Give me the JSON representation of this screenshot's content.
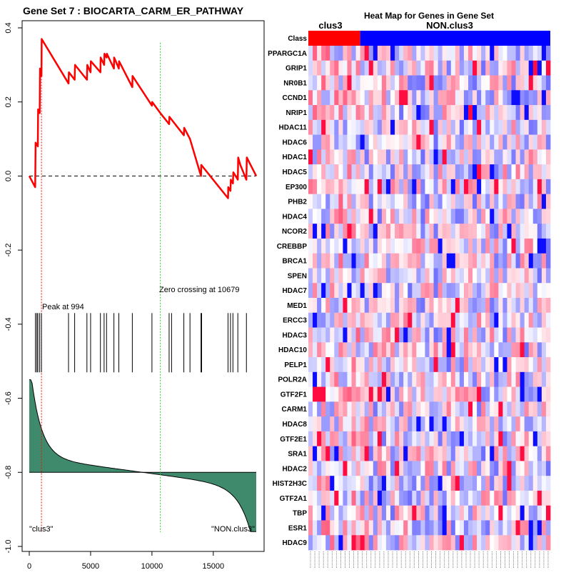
{
  "left_title": "Gene Set  7 : BIOCARTA_CARM_ER_PATHWAY",
  "heatmap_title": "Heat Map for Genes in Gene Set",
  "class_row_label": "Class",
  "class_labels": [
    "clus3",
    "NON.clus3"
  ],
  "colors": {
    "es_line": "#ff0000",
    "peak_line": "#ff0000",
    "zero_line": "#33cc33",
    "ranked_fill": "#3f8a6c",
    "class_pos": "#ff0000",
    "class_neg": "#0000ff"
  },
  "chart_data": [
    {
      "type": "line",
      "title": "Gene Set  7 : BIOCARTA_CARM_ER_PATHWAY",
      "xlim": [
        0,
        18700
      ],
      "ylim": [
        -1.0,
        0.4
      ],
      "x_ticks": [
        0,
        5000,
        10000,
        15000
      ],
      "y_ticks": [
        0.4,
        0.2,
        0.0,
        -0.2,
        -0.4,
        -0.6,
        -0.8,
        -1.0
      ],
      "y_tick_labels": [
        "0.4",
        "0.2",
        "0.0",
        "-0.2",
        "-0.4",
        "-0.6",
        "-0.8",
        "-1.0"
      ],
      "running_es": [
        [
          0,
          0.0
        ],
        [
          480,
          -0.03
        ],
        [
          520,
          0.09
        ],
        [
          700,
          0.08
        ],
        [
          720,
          0.18
        ],
        [
          850,
          0.17
        ],
        [
          880,
          0.29
        ],
        [
          994,
          0.27
        ],
        [
          1010,
          0.37
        ],
        [
          3200,
          0.25
        ],
        [
          3230,
          0.28
        ],
        [
          3700,
          0.26
        ],
        [
          3730,
          0.3
        ],
        [
          4700,
          0.26
        ],
        [
          4730,
          0.3
        ],
        [
          5000,
          0.28
        ],
        [
          5020,
          0.31
        ],
        [
          5800,
          0.28
        ],
        [
          5820,
          0.32
        ],
        [
          6100,
          0.3
        ],
        [
          6130,
          0.33
        ],
        [
          6300,
          0.32
        ],
        [
          6330,
          0.33
        ],
        [
          6900,
          0.29
        ],
        [
          6920,
          0.32
        ],
        [
          7300,
          0.29
        ],
        [
          7320,
          0.31
        ],
        [
          8400,
          0.24
        ],
        [
          8420,
          0.27
        ],
        [
          10000,
          0.19
        ],
        [
          10020,
          0.2
        ],
        [
          10679,
          0.17
        ],
        [
          11400,
          0.14
        ],
        [
          11420,
          0.16
        ],
        [
          12600,
          0.11
        ],
        [
          12630,
          0.13
        ],
        [
          13100,
          0.1
        ],
        [
          14000,
          0.0
        ],
        [
          14020,
          0.03
        ],
        [
          16200,
          -0.06
        ],
        [
          16220,
          -0.03
        ],
        [
          16400,
          -0.04
        ],
        [
          16430,
          -0.01
        ],
        [
          16600,
          -0.02
        ],
        [
          16630,
          0.01
        ],
        [
          17000,
          -0.01
        ],
        [
          17030,
          0.05
        ],
        [
          17200,
          0.03
        ],
        [
          17700,
          -0.01
        ],
        [
          17730,
          0.05
        ],
        [
          18500,
          0.0
        ]
      ],
      "hit_positions": [
        500,
        620,
        700,
        850,
        994,
        3200,
        3700,
        4700,
        5000,
        5800,
        6100,
        6300,
        6900,
        7300,
        8400,
        10000,
        11400,
        11600,
        12600,
        13100,
        14000,
        14050,
        16200,
        16400,
        16600,
        17000,
        17700
      ],
      "peak": 994,
      "zero_crossing": 10679,
      "peak_label": "Peak at 994",
      "zero_label": "Zero crossing at 10679",
      "left_class_label": "\"clus3\"",
      "right_class_label": "\"NON.clus3\"",
      "ranked_metric": {
        "start": 0.48,
        "baseline": 0.0,
        "end": -0.35,
        "n": 18700
      }
    },
    {
      "type": "heatmap",
      "title": "Heat Map for Genes in Gene Set",
      "class_labels": [
        "clus3",
        "NON.clus3"
      ],
      "n_columns": 56,
      "n_class1": 12,
      "genes": [
        "PPARGC1A",
        "GRIP1",
        "NR0B1",
        "CCND1",
        "NRIP1",
        "HDAC11",
        "HDAC6",
        "HDAC1",
        "HDAC5",
        "EP300",
        "PHB2",
        "HDAC4",
        "NCOR2",
        "CREBBP",
        "BRCA1",
        "SPEN",
        "HDAC7",
        "MED1",
        "ERCC3",
        "HDAC3",
        "HDAC10",
        "PELP1",
        "POLR2A",
        "GTF2F1",
        "CARM1",
        "HDAC8",
        "GTF2E1",
        "SRA1",
        "HDAC2",
        "HIST2H3C",
        "GTF2A1",
        "TBP",
        "ESR1",
        "HDAC9"
      ],
      "color_scale": [
        "#0000ff",
        "#ffffff",
        "#ff0000"
      ]
    }
  ]
}
